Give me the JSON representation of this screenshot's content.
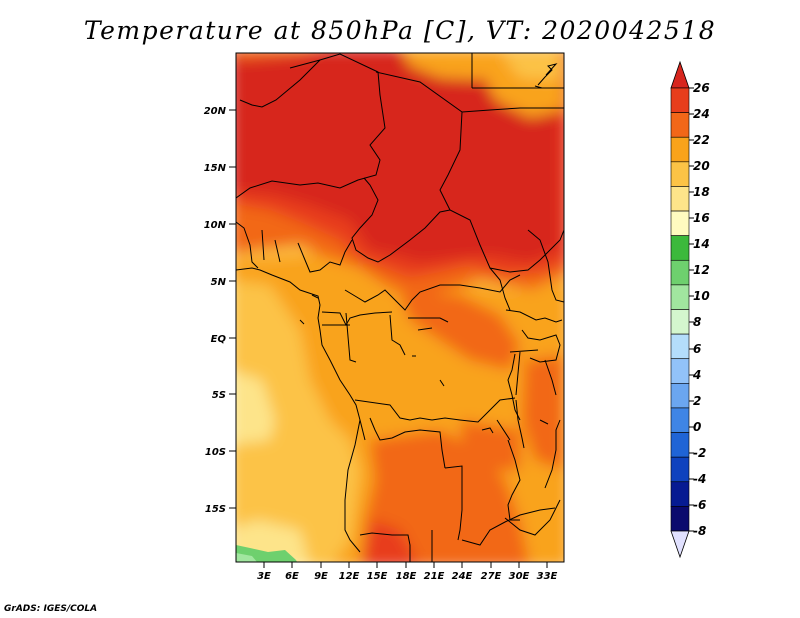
{
  "title": "Temperature at 850hPa [C], VT: 2020042518",
  "credit": "GrADS: IGES/COLA",
  "map": {
    "lat_labels": [
      "20N",
      "15N",
      "10N",
      "5N",
      "EQ",
      "5S",
      "10S",
      "15S"
    ],
    "lon_labels": [
      "3E",
      "6E",
      "9E",
      "12E",
      "15E",
      "18E",
      "21E",
      "24E",
      "27E",
      "30E",
      "33E"
    ]
  },
  "colorbar": {
    "labels": [
      "26",
      "24",
      "22",
      "20",
      "18",
      "16",
      "14",
      "12",
      "10",
      "8",
      "6",
      "4",
      "2",
      "0",
      "-2",
      "-4",
      "-6",
      "-8"
    ],
    "colors": [
      "#d7261e",
      "#e83e1c",
      "#f26718",
      "#f9a31b",
      "#fcc346",
      "#fde48a",
      "#fffbc0",
      "#3cb93c",
      "#6ed06e",
      "#a1e69f",
      "#d4f6ce",
      "#b4ddfb",
      "#92c2f8",
      "#6ba6f0",
      "#3f85e5",
      "#1f64d6",
      "#0e42be",
      "#061b92",
      "#0a0a6e",
      "#e1e1ff"
    ]
  }
}
